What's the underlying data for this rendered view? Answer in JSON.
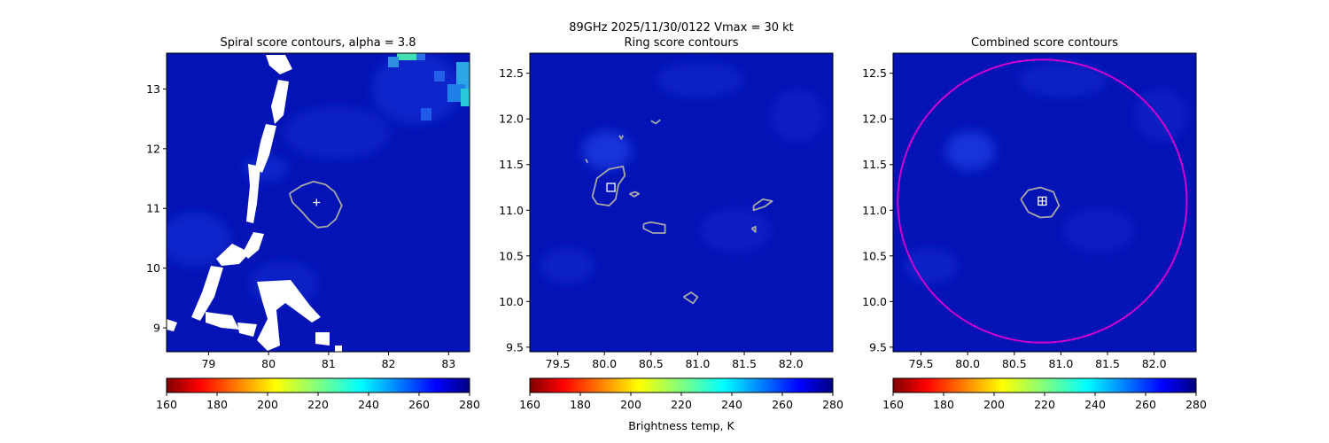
{
  "figure": {
    "suptitle_line1": "89GHz  2025/11/30/0122    Vmax = 30 kt",
    "colorbar_label": "Brightness temp, K"
  },
  "colors": {
    "field_base": "#0413b5",
    "field_light": "#1538e0",
    "contour": "#a8a8a8",
    "marker": "#ffffff",
    "circle": "#d000d0"
  },
  "colorbar": {
    "cmap": "jet_r",
    "range": [
      160,
      280
    ],
    "ticks": [
      "160",
      "180",
      "200",
      "220",
      "240",
      "260",
      "280"
    ]
  },
  "chart_data": [
    {
      "type": "heatmap",
      "title": "Spiral score contours, alpha =  3.8",
      "xlim": [
        78.3,
        83.35
      ],
      "ylim": [
        8.6,
        13.6
      ],
      "xticks": [
        79,
        80,
        81,
        82,
        83
      ],
      "yticks": [
        9,
        10,
        11,
        12,
        13
      ],
      "x_tick_labels": [
        "79",
        "80",
        "81",
        "82",
        "83"
      ],
      "y_tick_labels": [
        "9",
        "10",
        "11",
        "12",
        "13"
      ],
      "center_marker": {
        "shape": "plus",
        "x": 80.8,
        "y": 11.1
      },
      "contours": [
        [
          [
            80.35,
            11.25
          ],
          [
            80.55,
            11.38
          ],
          [
            80.75,
            11.45
          ],
          [
            80.95,
            11.4
          ],
          [
            81.1,
            11.28
          ],
          [
            81.22,
            11.05
          ],
          [
            81.12,
            10.82
          ],
          [
            80.98,
            10.7
          ],
          [
            80.82,
            10.68
          ],
          [
            80.7,
            10.78
          ],
          [
            80.55,
            10.95
          ],
          [
            80.4,
            11.1
          ],
          [
            80.35,
            11.25
          ]
        ]
      ]
    },
    {
      "type": "heatmap",
      "title": "Ring score contours",
      "xlim": [
        79.2,
        82.45
      ],
      "ylim": [
        9.45,
        12.72
      ],
      "xticks": [
        79.5,
        80.0,
        80.5,
        81.0,
        81.5,
        82.0
      ],
      "yticks": [
        9.5,
        10.0,
        10.5,
        11.0,
        11.5,
        12.0,
        12.5
      ],
      "x_tick_labels": [
        "79.5",
        "80.0",
        "80.5",
        "81.0",
        "81.5",
        "82.0"
      ],
      "y_tick_labels": [
        "9.5",
        "10.0",
        "10.5",
        "11.0",
        "11.5",
        "12.0",
        "12.5"
      ],
      "center_marker": {
        "shape": "square",
        "x": 80.07,
        "y": 11.25
      },
      "contours": [
        [
          [
            79.87,
            11.15
          ],
          [
            79.92,
            11.35
          ],
          [
            80.05,
            11.45
          ],
          [
            80.2,
            11.48
          ],
          [
            80.22,
            11.38
          ],
          [
            80.15,
            11.28
          ],
          [
            80.12,
            11.12
          ],
          [
            80.05,
            11.05
          ],
          [
            79.92,
            11.07
          ],
          [
            79.87,
            11.15
          ]
        ],
        [
          [
            80.27,
            11.18
          ],
          [
            80.33,
            11.2
          ],
          [
            80.37,
            11.18
          ],
          [
            80.32,
            11.15
          ],
          [
            80.27,
            11.18
          ]
        ],
        [
          [
            80.42,
            10.85
          ],
          [
            80.5,
            10.87
          ],
          [
            80.65,
            10.84
          ],
          [
            80.65,
            10.75
          ],
          [
            80.52,
            10.75
          ],
          [
            80.42,
            10.8
          ],
          [
            80.42,
            10.85
          ]
        ],
        [
          [
            81.6,
            11.05
          ],
          [
            81.7,
            11.12
          ],
          [
            81.8,
            11.1
          ],
          [
            81.72,
            11.04
          ],
          [
            81.6,
            11.0
          ],
          [
            81.6,
            11.05
          ]
        ],
        [
          [
            81.58,
            10.8
          ],
          [
            81.62,
            10.82
          ],
          [
            81.62,
            10.76
          ],
          [
            81.58,
            10.8
          ]
        ],
        [
          [
            80.85,
            10.05
          ],
          [
            80.93,
            10.1
          ],
          [
            81.0,
            10.05
          ],
          [
            80.95,
            9.98
          ],
          [
            80.85,
            10.05
          ]
        ],
        [
          [
            80.16,
            11.82
          ],
          [
            80.18,
            11.78
          ],
          [
            80.2,
            11.82
          ]
        ],
        [
          [
            80.5,
            11.98
          ],
          [
            80.55,
            11.95
          ],
          [
            80.6,
            11.99
          ]
        ],
        [
          [
            79.8,
            11.56
          ],
          [
            79.82,
            11.52
          ]
        ]
      ]
    },
    {
      "type": "heatmap",
      "title": "Combined score contours",
      "xlim": [
        79.2,
        82.45
      ],
      "ylim": [
        9.45,
        12.72
      ],
      "xticks": [
        79.5,
        80.0,
        80.5,
        81.0,
        81.5,
        82.0
      ],
      "yticks": [
        9.5,
        10.0,
        10.5,
        11.0,
        11.5,
        12.0,
        12.5
      ],
      "x_tick_labels": [
        "79.5",
        "80.0",
        "80.5",
        "81.0",
        "81.5",
        "82.0"
      ],
      "y_tick_labels": [
        "9.5",
        "10.0",
        "10.5",
        "11.0",
        "11.5",
        "12.0",
        "12.5"
      ],
      "center_marker": {
        "shape": "square-plus",
        "x": 80.8,
        "y": 11.1
      },
      "circle": {
        "cx": 80.8,
        "cy": 11.1,
        "r": 1.55
      },
      "contours": [
        [
          [
            80.57,
            11.12
          ],
          [
            80.65,
            11.22
          ],
          [
            80.78,
            11.25
          ],
          [
            80.92,
            11.2
          ],
          [
            80.98,
            11.05
          ],
          [
            80.9,
            10.93
          ],
          [
            80.78,
            10.92
          ],
          [
            80.65,
            10.98
          ],
          [
            80.57,
            11.12
          ]
        ]
      ]
    }
  ]
}
